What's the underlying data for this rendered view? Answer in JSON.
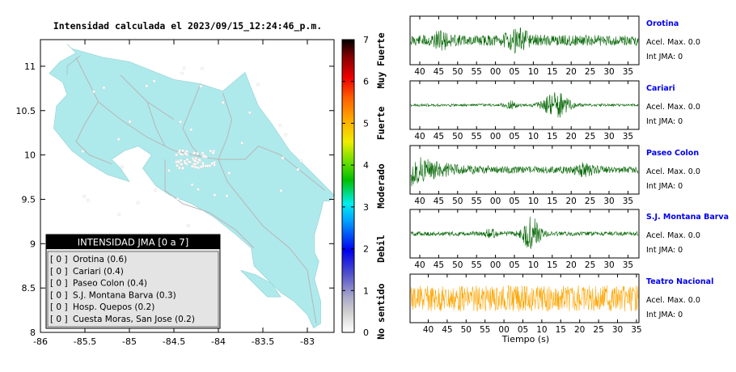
{
  "map": {
    "title": "Intensidad calculada el 2023/09/15_12:24:46_p.m.",
    "xlim": [
      -86,
      -82.7
    ],
    "ylim": [
      8,
      11.3
    ],
    "x_ticks": [
      "-86",
      "-85.5",
      "-85",
      "-84.5",
      "-84",
      "-83.5",
      "-83"
    ],
    "x_tick_values": [
      -86,
      -85.5,
      -85,
      -84.5,
      -84,
      -83.5,
      -83
    ],
    "y_ticks": [
      "8",
      "8.5",
      "9",
      "9.5",
      "10",
      "10.5",
      "11"
    ],
    "y_tick_values": [
      8,
      8.5,
      9,
      9.5,
      10,
      10.5,
      11
    ],
    "land_color": "#aeeaec",
    "background_color": "#ffffff"
  },
  "legend": {
    "title": "INTENSIDAD JMA [0 a 7]",
    "items": [
      {
        "level": "[ 0 ]",
        "label": "Orotina (0.6)"
      },
      {
        "level": "[ 0 ]",
        "label": "Cariari (0.4)"
      },
      {
        "level": "[ 0 ]",
        "label": "Paseo Colon (0.4)"
      },
      {
        "level": "[ 0 ]",
        "label": "S.J. Montana Barva (0.3)"
      },
      {
        "level": "[ 0 ]",
        "label": "Hosp. Quepos (0.2)"
      },
      {
        "level": "[ 0 ]",
        "label": "Cuesta Moras, San Jose (0.2)"
      }
    ]
  },
  "colorbar": {
    "ticks": [
      "0",
      "1",
      "2",
      "3",
      "4",
      "5",
      "6",
      "7"
    ],
    "categories": [
      "No sentido",
      "Debil",
      "Moderado",
      "Fuerte",
      "Muy Fuerte"
    ],
    "range": [
      0,
      7
    ]
  },
  "chart_data": {
    "type": "line",
    "xlabel": "Tiempo (s)",
    "x_ticks": [
      "40",
      "45",
      "50",
      "55",
      "00",
      "05",
      "10",
      "15",
      "20",
      "25",
      "30",
      "35"
    ],
    "series": [
      {
        "name": "Orotina",
        "acel": "Acel. Max. 0.0",
        "jma": "Int JMA: 0",
        "color": "#006400"
      },
      {
        "name": "Cariari",
        "acel": "Acel. Max. 0.0",
        "jma": "Int JMA: 0",
        "color": "#006400"
      },
      {
        "name": "Paseo Colon",
        "acel": "Acel. Max. 0.0",
        "jma": "Int JMA: 0",
        "color": "#006400"
      },
      {
        "name": "S.J. Montana Barva",
        "acel": "Acel. Max. 0.0",
        "jma": "Int JMA: 0",
        "color": "#006400"
      },
      {
        "name": "Teatro Nacional",
        "acel": "Acel. Max. 0.0",
        "jma": "Int JMA: 0",
        "color": "#ffa500"
      }
    ]
  }
}
